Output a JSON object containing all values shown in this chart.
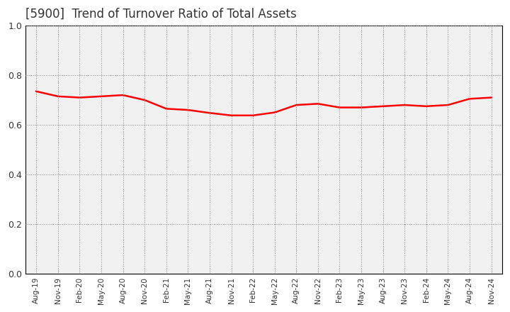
{
  "title": "[5900]  Trend of Turnover Ratio of Total Assets",
  "title_fontsize": 12,
  "title_color": "#333333",
  "line_color": "#ff0000",
  "line_width": 1.8,
  "background_color": "#ffffff",
  "plot_bg_color": "#f0f0f0",
  "grid_color": "#888888",
  "ylim": [
    0.0,
    1.0
  ],
  "yticks": [
    0.0,
    0.2,
    0.4,
    0.6,
    0.8,
    1.0
  ],
  "x_labels": [
    "Aug-19",
    "Nov-19",
    "Feb-20",
    "May-20",
    "Aug-20",
    "Nov-20",
    "Feb-21",
    "May-21",
    "Aug-21",
    "Nov-21",
    "Feb-22",
    "May-22",
    "Aug-22",
    "Nov-22",
    "Feb-23",
    "May-23",
    "Aug-23",
    "Nov-23",
    "Feb-24",
    "May-24",
    "Aug-24",
    "Nov-24"
  ],
  "values": [
    0.735,
    0.715,
    0.71,
    0.715,
    0.72,
    0.7,
    0.665,
    0.66,
    0.648,
    0.638,
    0.638,
    0.65,
    0.68,
    0.685,
    0.67,
    0.67,
    0.675,
    0.68,
    0.675,
    0.68,
    0.705,
    0.71
  ]
}
